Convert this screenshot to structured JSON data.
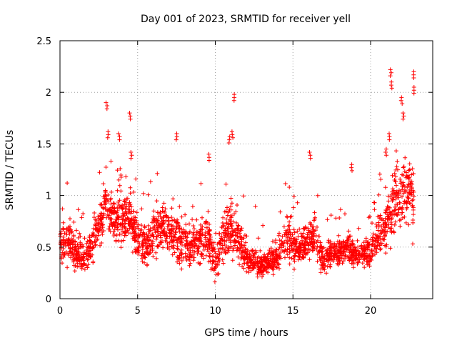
{
  "chart_data": {
    "type": "scatter",
    "title": "Day 001 of 2023, SRMTID for receiver yell",
    "xlabel": "GPS time / hours",
    "ylabel": "SRMTID / TECUs",
    "xlim": [
      0,
      24
    ],
    "ylim": [
      0,
      2.5
    ],
    "xticks": [
      "0",
      "5",
      "10",
      "15",
      "20"
    ],
    "xtick_values": [
      0,
      5,
      10,
      15,
      20
    ],
    "yticks": [
      "0",
      "0.5",
      "1",
      "1.5",
      "2",
      "2.5"
    ],
    "ytick_values": [
      0,
      0.5,
      1,
      1.5,
      2,
      2.5
    ],
    "grid": true,
    "marker": "plus",
    "series_color": "#ff0000",
    "series": [
      {
        "name": "SRMTID",
        "envelope": [
          [
            0.0,
            0.5,
            0.25
          ],
          [
            0.5,
            0.55,
            0.3
          ],
          [
            1.0,
            0.45,
            0.25
          ],
          [
            1.5,
            0.38,
            0.2
          ],
          [
            2.0,
            0.5,
            0.25
          ],
          [
            2.5,
            0.7,
            0.3
          ],
          [
            3.0,
            0.9,
            0.35
          ],
          [
            3.5,
            0.8,
            0.3
          ],
          [
            4.0,
            0.75,
            0.3
          ],
          [
            4.5,
            0.85,
            0.35
          ],
          [
            5.0,
            0.55,
            0.25
          ],
          [
            5.5,
            0.5,
            0.25
          ],
          [
            6.0,
            0.6,
            0.3
          ],
          [
            6.5,
            0.7,
            0.3
          ],
          [
            7.0,
            0.65,
            0.3
          ],
          [
            7.5,
            0.6,
            0.3
          ],
          [
            8.0,
            0.55,
            0.3
          ],
          [
            8.5,
            0.5,
            0.25
          ],
          [
            9.0,
            0.55,
            0.3
          ],
          [
            9.5,
            0.6,
            0.3
          ],
          [
            10.0,
            0.35,
            0.25
          ],
          [
            10.5,
            0.6,
            0.3
          ],
          [
            11.0,
            0.7,
            0.35
          ],
          [
            11.5,
            0.55,
            0.3
          ],
          [
            12.0,
            0.4,
            0.2
          ],
          [
            12.5,
            0.35,
            0.15
          ],
          [
            13.0,
            0.32,
            0.15
          ],
          [
            13.5,
            0.35,
            0.15
          ],
          [
            14.0,
            0.4,
            0.2
          ],
          [
            14.5,
            0.6,
            0.3
          ],
          [
            15.0,
            0.5,
            0.25
          ],
          [
            15.5,
            0.5,
            0.25
          ],
          [
            16.0,
            0.55,
            0.25
          ],
          [
            16.5,
            0.6,
            0.3
          ],
          [
            17.0,
            0.35,
            0.2
          ],
          [
            17.5,
            0.45,
            0.2
          ],
          [
            18.0,
            0.45,
            0.2
          ],
          [
            18.5,
            0.5,
            0.2
          ],
          [
            19.0,
            0.4,
            0.2
          ],
          [
            19.5,
            0.45,
            0.2
          ],
          [
            20.0,
            0.45,
            0.2
          ],
          [
            20.5,
            0.65,
            0.3
          ],
          [
            21.0,
            0.7,
            0.3
          ],
          [
            21.5,
            0.9,
            0.45
          ],
          [
            22.0,
            1.0,
            0.45
          ],
          [
            22.5,
            1.0,
            0.45
          ],
          [
            22.8,
            0.9,
            0.5
          ]
        ],
        "peaks": [
          [
            3.0,
            1.9
          ],
          [
            3.1,
            1.62
          ],
          [
            3.8,
            1.6
          ],
          [
            4.5,
            1.8
          ],
          [
            4.6,
            1.42
          ],
          [
            7.5,
            1.6
          ],
          [
            9.6,
            1.4
          ],
          [
            10.9,
            1.57
          ],
          [
            11.2,
            1.98
          ],
          [
            11.1,
            1.62
          ],
          [
            16.1,
            1.42
          ],
          [
            18.8,
            1.3
          ],
          [
            21.3,
            2.22
          ],
          [
            21.35,
            2.1
          ],
          [
            22.0,
            1.95
          ],
          [
            22.8,
            2.2
          ],
          [
            22.8,
            2.05
          ],
          [
            22.1,
            1.8
          ],
          [
            21.2,
            1.6
          ],
          [
            21.0,
            1.45
          ]
        ],
        "point_count": 2500
      }
    ]
  }
}
